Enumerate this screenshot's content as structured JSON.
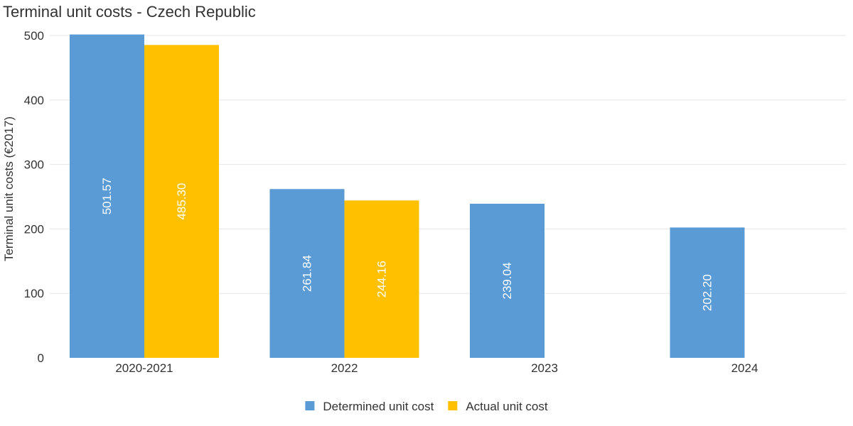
{
  "chart_data": {
    "type": "bar",
    "title": "Terminal unit costs - Czech Republic",
    "xlabel": "",
    "ylabel": "Terminal unit costs (€2017)",
    "categories": [
      "2020-2021",
      "2022",
      "2023",
      "2024"
    ],
    "series": [
      {
        "name": "Determined unit cost",
        "color": "#5b9bd5",
        "values": [
          501.57,
          261.84,
          239.04,
          202.2
        ],
        "labels": [
          "501.57",
          "261.84",
          "239.04",
          "202.20"
        ]
      },
      {
        "name": "Actual unit cost",
        "color": "#ffc000",
        "values": [
          485.3,
          244.16,
          null,
          null
        ],
        "labels": [
          "485.30",
          "244.16",
          null,
          null
        ]
      }
    ],
    "ylim": [
      0,
      500
    ],
    "yticks": [
      0,
      100,
      200,
      300,
      400,
      500
    ],
    "grid": true,
    "legend_position": "bottom"
  }
}
